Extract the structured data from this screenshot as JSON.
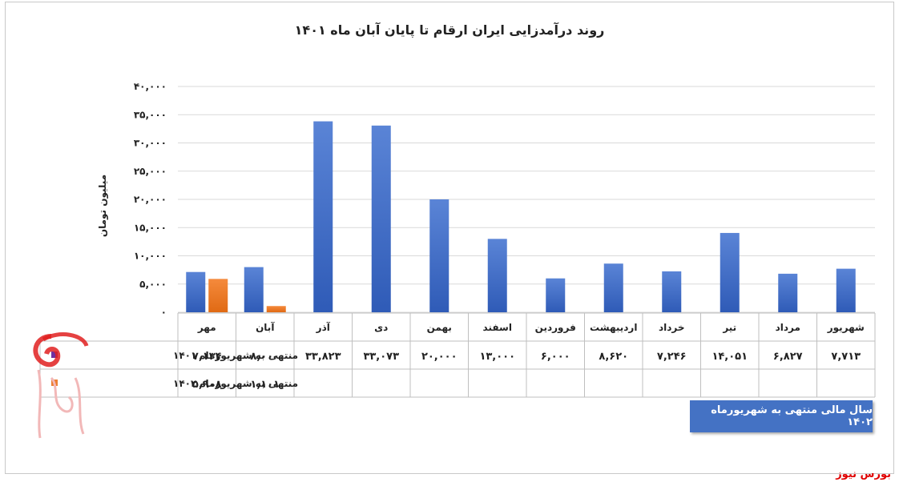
{
  "chart_data": {
    "type": "bar",
    "title": "روند درآمدزایی ایران ارقام تا پایان آبان ماه ۱۴۰۱",
    "ylabel": "میلیون تومان",
    "ylim": [
      0,
      40000
    ],
    "yticks": [
      0,
      5000,
      10000,
      15000,
      20000,
      25000,
      30000,
      35000,
      40000
    ],
    "ytick_labels": [
      "۰",
      "۵,۰۰۰",
      "۱۰,۰۰۰",
      "۱۵,۰۰۰",
      "۲۰,۰۰۰",
      "۲۵,۰۰۰",
      "۳۰,۰۰۰",
      "۳۵,۰۰۰",
      "۴۰,۰۰۰"
    ],
    "grid": true,
    "categories": [
      "مهر",
      "آبان",
      "آذر",
      "دی",
      "بهمن",
      "اسفند",
      "فروردین",
      "اردیبهشت",
      "خرداد",
      "تیر",
      "مرداد",
      "شهریور"
    ],
    "series": [
      {
        "name": "منتهی به شهریورماه ۱۴۰۱",
        "color": "#4472c4",
        "values": [
          7134,
          8000,
          33823,
          33073,
          20000,
          13000,
          6000,
          8620,
          7246,
          14051,
          6827,
          7713
        ],
        "labels": [
          "۷,۱۳۴",
          "۸,۰۰۰",
          "۳۳,۸۲۳",
          "۳۳,۰۷۳",
          "۲۰,۰۰۰",
          "۱۳,۰۰۰",
          "۶,۰۰۰",
          "۸,۶۲۰",
          "۷,۲۴۶",
          "۱۴,۰۵۱",
          "۶,۸۲۷",
          "۷,۷۱۳"
        ]
      },
      {
        "name": "منتهی به شهریورماه ۱۴۰۲",
        "color": "#ed7d31",
        "values": [
          5908,
          1101,
          null,
          null,
          null,
          null,
          null,
          null,
          null,
          null,
          null,
          null
        ],
        "labels": [
          "۵,۹۰۸",
          "۱,۱۰۱",
          "",
          "",
          "",
          "",
          "",
          "",
          "",
          "",
          "",
          ""
        ]
      }
    ],
    "table_legend_colors": [
      "#7030a0",
      "#ed7d31"
    ]
  },
  "footer_button": "سال مالی منتهی به شهریورماه ۱۴۰۲",
  "source": "بورس نیوز",
  "watermark_text": "بورس نیوز"
}
